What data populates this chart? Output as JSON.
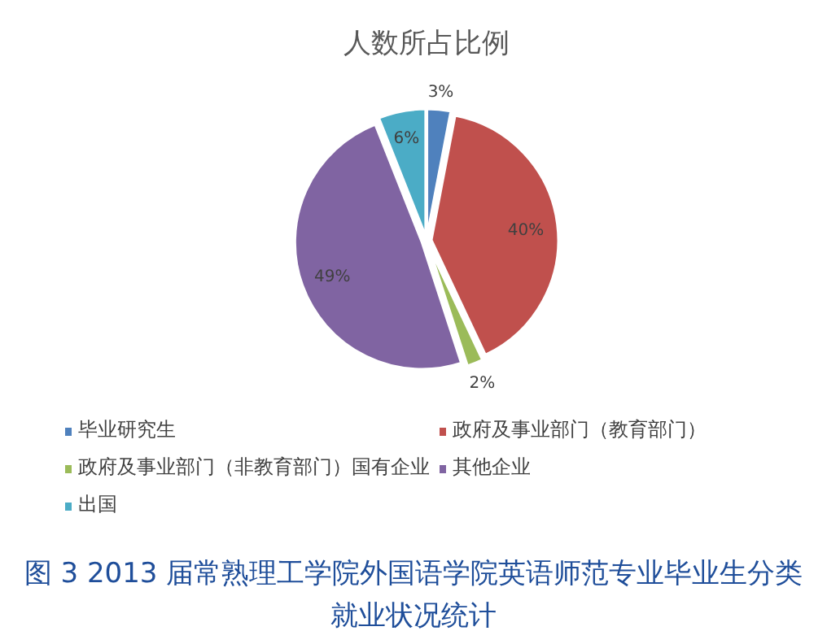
{
  "chart_data": {
    "type": "pie",
    "title": "人数所占比例",
    "categories": [
      "毕业研究生",
      "政府及事业部门（教育部门）",
      "政府及事业部门（非教育部门）国有企业",
      "其他企业",
      "出国"
    ],
    "values": [
      3,
      40,
      2,
      49,
      6
    ],
    "colors": [
      "#4f81bd",
      "#c0504d",
      "#9bbb59",
      "#8064a2",
      "#4bacc6"
    ],
    "value_labels": [
      "3%",
      "40%",
      "2%",
      "49%",
      "6%"
    ],
    "legend": "bottom",
    "annotations": [
      "图 3 2013 届常熟理工学院外国语学院英语师范专业毕业生分类就业状况统计"
    ]
  }
}
